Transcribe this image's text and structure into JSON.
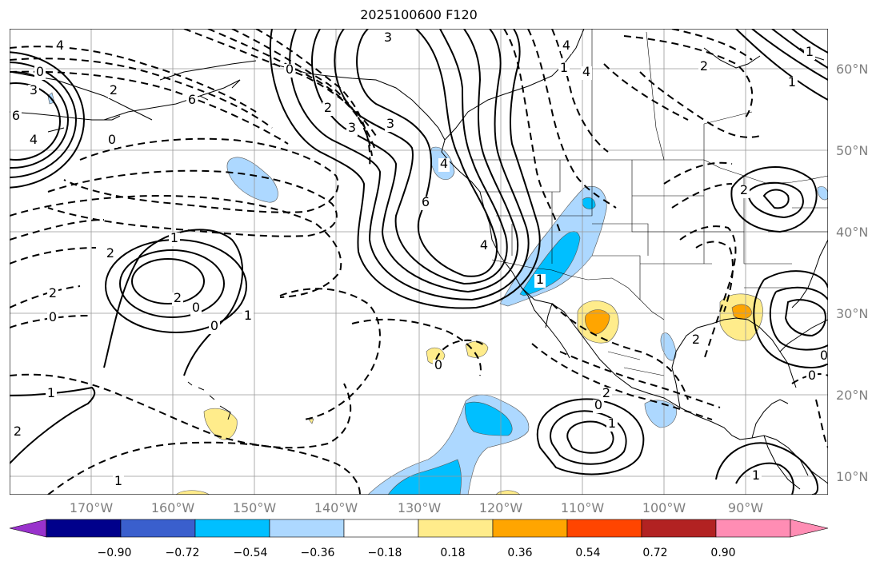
{
  "title": "2025100600 F120",
  "lat_labels": [
    "60°N",
    "50°N",
    "40°N",
    "30°N",
    "20°N",
    "10°N"
  ],
  "lon_labels": [
    "170°W",
    "160°W",
    "150°W",
    "140°W",
    "130°W",
    "120°W",
    "110°W",
    "100°W",
    "90°W"
  ],
  "colorbar": {
    "tick_labels": [
      "−0.90",
      "−0.72",
      "−0.54",
      "−0.36",
      "−0.18",
      "0.18",
      "0.36",
      "0.54",
      "0.72",
      "0.90"
    ],
    "colors": [
      "#9932cc",
      "#00008b",
      "#3a5fcd",
      "#00bfff",
      "#add8ff",
      "#ffffff",
      "#ffec8b",
      "#ffa500",
      "#ff4500",
      "#b22222",
      "#ff8db4"
    ]
  },
  "contour_labels": [
    "4",
    "0",
    "3",
    "6",
    "6",
    "4",
    "3",
    "2",
    "0",
    "2",
    "4",
    "6",
    "4",
    "3",
    "4",
    "1",
    "2",
    "0",
    "0",
    "1",
    "2",
    "2",
    "0",
    "1",
    "2",
    "0",
    "1",
    "2",
    "1",
    "0",
    "0",
    "0",
    "2",
    "1",
    "1",
    "2",
    "4",
    "1",
    "2",
    "3",
    "0",
    "1",
    "1"
  ],
  "map_style": {
    "coastline_color": "#000000",
    "gridline_color": "#999999",
    "positive_contour": "solid",
    "negative_contour": "dashed"
  }
}
